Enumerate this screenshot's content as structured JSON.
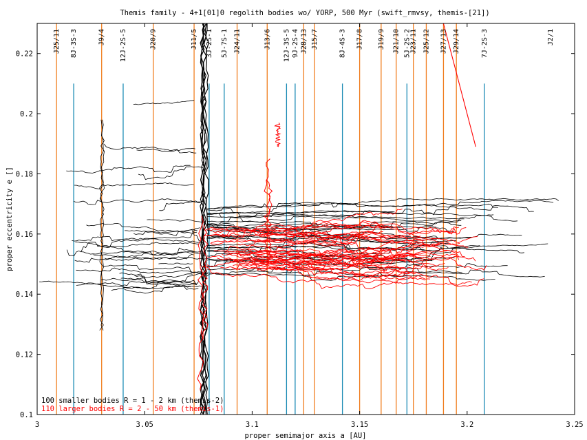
{
  "chart_data": {
    "type": "line",
    "title": "Themis family - 4+1[01]0 regolith bodies wo/ YORP, 500 Myr (swift_rmvsy, themis-[21])",
    "xlabel": "proper semimajor axis a [AU]",
    "ylabel": "proper eccentricity e []",
    "xlim": [
      3.0,
      3.25
    ],
    "ylim": [
      0.1,
      0.23
    ],
    "x_ticks": [
      {
        "value": 3.0,
        "label": "3"
      },
      {
        "value": 3.05,
        "label": "3.05"
      },
      {
        "value": 3.1,
        "label": "3.1"
      },
      {
        "value": 3.15,
        "label": "3.15"
      },
      {
        "value": 3.2,
        "label": "3.2"
      },
      {
        "value": 3.25,
        "label": "3.25"
      }
    ],
    "y_ticks": [
      {
        "value": 0.1,
        "label": "0.1"
      },
      {
        "value": 0.12,
        "label": "0.12"
      },
      {
        "value": 0.14,
        "label": "0.14"
      },
      {
        "value": 0.16,
        "label": "0.16"
      },
      {
        "value": 0.18,
        "label": "0.18"
      },
      {
        "value": 0.2,
        "label": "0.2"
      },
      {
        "value": 0.22,
        "label": "0.22"
      }
    ],
    "grid": false,
    "legend_position": "bottom-left",
    "series": [
      {
        "name": "100 smaller bodies R = 1 - 2 km (themis-2)",
        "color": "#000000"
      },
      {
        "name": "110 larger bodies R = 2 - 50 km (themis-1)",
        "color": "#ff0000"
      }
    ],
    "resonances": [
      {
        "label": "J25/11",
        "a": 3.009,
        "kind": "mmr"
      },
      {
        "label": "8J-3S-3",
        "a": 3.017,
        "kind": "three-body"
      },
      {
        "label": "J9/4",
        "a": 3.03,
        "kind": "mmr"
      },
      {
        "label": "12J-2S-5",
        "a": 3.04,
        "kind": "three-body"
      },
      {
        "label": "J20/9",
        "a": 3.054,
        "kind": "mmr"
      },
      {
        "label": "J11/5",
        "a": 3.073,
        "kind": "mmr"
      },
      {
        "label": "3J-2S-1",
        "a": 3.08,
        "kind": "three-body"
      },
      {
        "label": "5J-7S-1",
        "a": 3.087,
        "kind": "three-body"
      },
      {
        "label": "J24/11",
        "a": 3.093,
        "kind": "mmr"
      },
      {
        "label": "J13/6",
        "a": 3.107,
        "kind": "mmr"
      },
      {
        "label": "12J-3S-5",
        "a": 3.116,
        "kind": "three-body"
      },
      {
        "label": "9J-2S-4",
        "a": 3.12,
        "kind": "three-body"
      },
      {
        "label": "J28/13",
        "a": 3.124,
        "kind": "mmr"
      },
      {
        "label": "J15/7",
        "a": 3.129,
        "kind": "mmr"
      },
      {
        "label": "8J-4S-3",
        "a": 3.142,
        "kind": "three-body"
      },
      {
        "label": "J17/8",
        "a": 3.15,
        "kind": "mmr"
      },
      {
        "label": "J19/9",
        "a": 3.16,
        "kind": "mmr"
      },
      {
        "label": "J21/10",
        "a": 3.167,
        "kind": "mmr"
      },
      {
        "label": "5J-2S-2",
        "a": 3.172,
        "kind": "three-body"
      },
      {
        "label": "J23/11",
        "a": 3.175,
        "kind": "mmr"
      },
      {
        "label": "J25/12",
        "a": 3.181,
        "kind": "mmr"
      },
      {
        "label": "J27/13",
        "a": 3.189,
        "kind": "mmr"
      },
      {
        "label": "J29/14",
        "a": 3.195,
        "kind": "mmr"
      },
      {
        "label": "7J-2S-3",
        "a": 3.208,
        "kind": "three-body"
      },
      {
        "label": "J2/1",
        "a": 3.277,
        "kind": "mmr"
      }
    ]
  },
  "colors": {
    "frame": "#000000",
    "mmr": "#f07d1e",
    "three_body": "#1a8ab4",
    "smaller": "#000000",
    "larger": "#ff0000"
  }
}
